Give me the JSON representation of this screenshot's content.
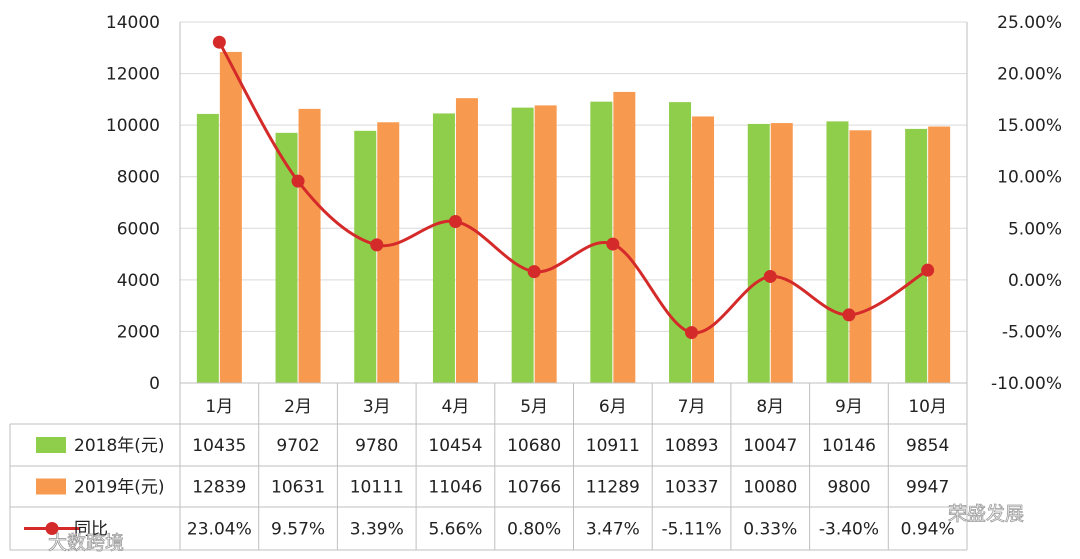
{
  "chart_data": {
    "type": "bar",
    "categories": [
      "1月",
      "2月",
      "3月",
      "4月",
      "5月",
      "6月",
      "7月",
      "8月",
      "9月",
      "10月"
    ],
    "series": [
      {
        "name": "2018年(元)",
        "type": "bar",
        "color": "#8fce4a",
        "values": [
          10435,
          9702,
          9780,
          10454,
          10680,
          10911,
          10893,
          10047,
          10146,
          9854
        ],
        "labels": [
          "10435",
          "9702",
          "9780",
          "10454",
          "10680",
          "10911",
          "10893",
          "10047",
          "10146",
          "9854"
        ]
      },
      {
        "name": "2019年(元)",
        "type": "bar",
        "color": "#f79a50",
        "values": [
          12839,
          10631,
          10111,
          11046,
          10766,
          11289,
          10337,
          10080,
          9800,
          9947
        ],
        "labels": [
          "12839",
          "10631",
          "10111",
          "11046",
          "10766",
          "11289",
          "10337",
          "10080",
          "9800",
          "9947"
        ]
      },
      {
        "name": "同比",
        "type": "line",
        "axis": "right",
        "color": "#d42a2a",
        "values": [
          23.04,
          9.57,
          3.39,
          5.66,
          0.8,
          3.47,
          -5.11,
          0.33,
          -3.4,
          0.94
        ],
        "labels": [
          "23.04%",
          "9.57%",
          "3.39%",
          "5.66%",
          "0.80%",
          "3.47%",
          "-5.11%",
          "0.33%",
          "-3.40%",
          "0.94%"
        ]
      }
    ],
    "ylim": [
      0,
      14000
    ],
    "yticks": [
      "0",
      "2000",
      "4000",
      "6000",
      "8000",
      "10000",
      "12000",
      "14000"
    ],
    "y2lim": [
      -10,
      25
    ],
    "y2ticks": [
      "-10.00%",
      "-5.00%",
      "0.00%",
      "5.00%",
      "10.00%",
      "15.00%",
      "20.00%",
      "25.00%"
    ],
    "grid": true,
    "legend": "data-table-left",
    "watermarks": [
      "大数跨境",
      "荣盛发展"
    ]
  }
}
